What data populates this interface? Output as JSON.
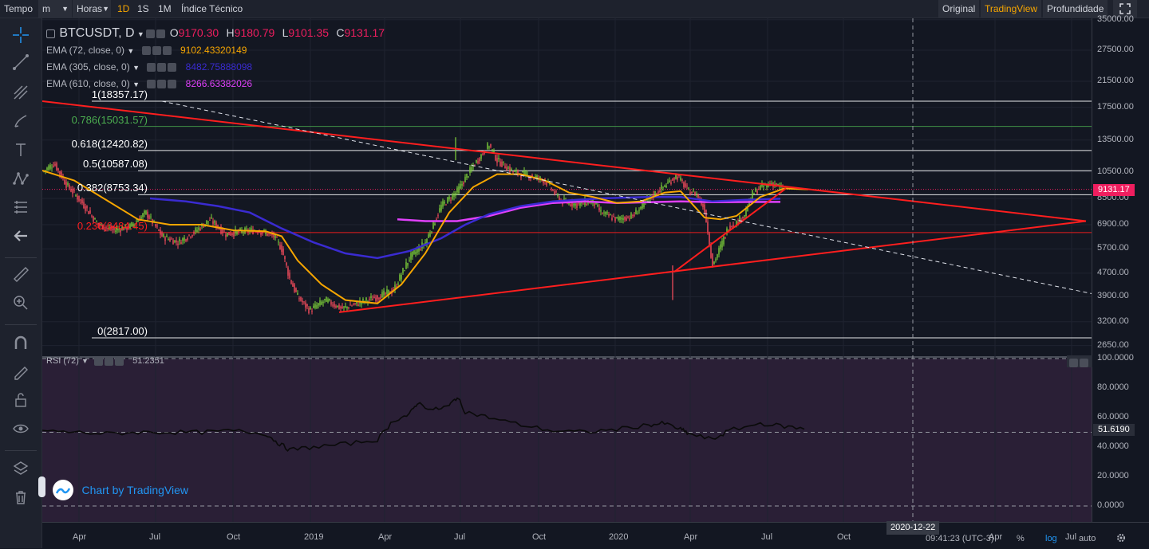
{
  "toolbar": {
    "tempo_label": "Tempo",
    "interval_value": "m",
    "horas_label": "Horas",
    "intervals": [
      "1D",
      "1S",
      "1M"
    ],
    "active_interval": "1D",
    "indicators_label": "Índice Técnico",
    "view_tabs": [
      "Original",
      "TradingView",
      "Profundidade"
    ],
    "active_view": "TradingView"
  },
  "main_legend": {
    "symbol": "BTCUSDT, D",
    "o_label": "O",
    "o_value": "9170.30",
    "h_label": "H",
    "h_value": "9180.79",
    "l_label": "L",
    "l_value": "9101.35",
    "c_label": "C",
    "c_value": "9131.17"
  },
  "studies": [
    {
      "name": "EMA (72, close, 0)",
      "value": "9102.43320149",
      "color": "#f7a600"
    },
    {
      "name": "EMA (305, close, 0)",
      "value": "8482.75888098",
      "color": "#3a2bd1"
    },
    {
      "name": "EMA (610, close, 0)",
      "value": "8266.63382026",
      "color": "#e040fb"
    }
  ],
  "fib_levels": [
    {
      "label": "1(18357.17)",
      "price": 18357.17,
      "color": "#ffffff"
    },
    {
      "label": "0.786(15031.57)",
      "price": 15031.57,
      "color": "#4caf50"
    },
    {
      "label": "0.618(12420.82)",
      "price": 12420.82,
      "color": "#ffffff"
    },
    {
      "label": "0.5(10587.08)",
      "price": 10587.08,
      "color": "#ffffff"
    },
    {
      "label": "0.382(8753.34)",
      "price": 8753.34,
      "color": "#ffffff"
    },
    {
      "label": "0.236(6484.45)",
      "price": 6484.45,
      "color": "#ff1e1e"
    },
    {
      "label": "0(2817.00)",
      "price": 2817.0,
      "color": "#ffffff"
    }
  ],
  "price_axis": {
    "ticks": [
      "35000.00",
      "27500.00",
      "21500.00",
      "17500.00",
      "13500.00",
      "10500.00",
      "8500.00",
      "6900.00",
      "5700.00",
      "4700.00",
      "3900.00",
      "3200.00",
      "2650.00"
    ],
    "current_price": "9131.17",
    "scale": "log"
  },
  "rsi": {
    "label": "RSI (72)",
    "value": "51.2351",
    "current": "51.6190",
    "ticks": [
      "100.0000",
      "80.0000",
      "60.0000",
      "40.0000",
      "20.0000",
      "0.0000"
    ]
  },
  "time_axis": {
    "labels": [
      "Apr",
      "Jul",
      "Oct",
      "2019",
      "Apr",
      "Jul",
      "Oct",
      "2020",
      "Apr",
      "Jul",
      "Oct",
      "Apr",
      "Jul"
    ],
    "cursor_date": "2020-12-22"
  },
  "watermark": "Chart by TradingView",
  "status_bar": {
    "time": "09:41:23 (UTC-3)",
    "percent_label": "%",
    "log_label": "log",
    "auto_label": "auto"
  },
  "colors": {
    "up": "#26a69a",
    "down": "#ef5350",
    "ema72": "#f7a600",
    "ema305": "#3a2bd1",
    "ema610": "#e040fb",
    "trendline": "#ff1e1e",
    "accent": "#f7a600",
    "rsi_bg": "#2a1f36"
  }
}
